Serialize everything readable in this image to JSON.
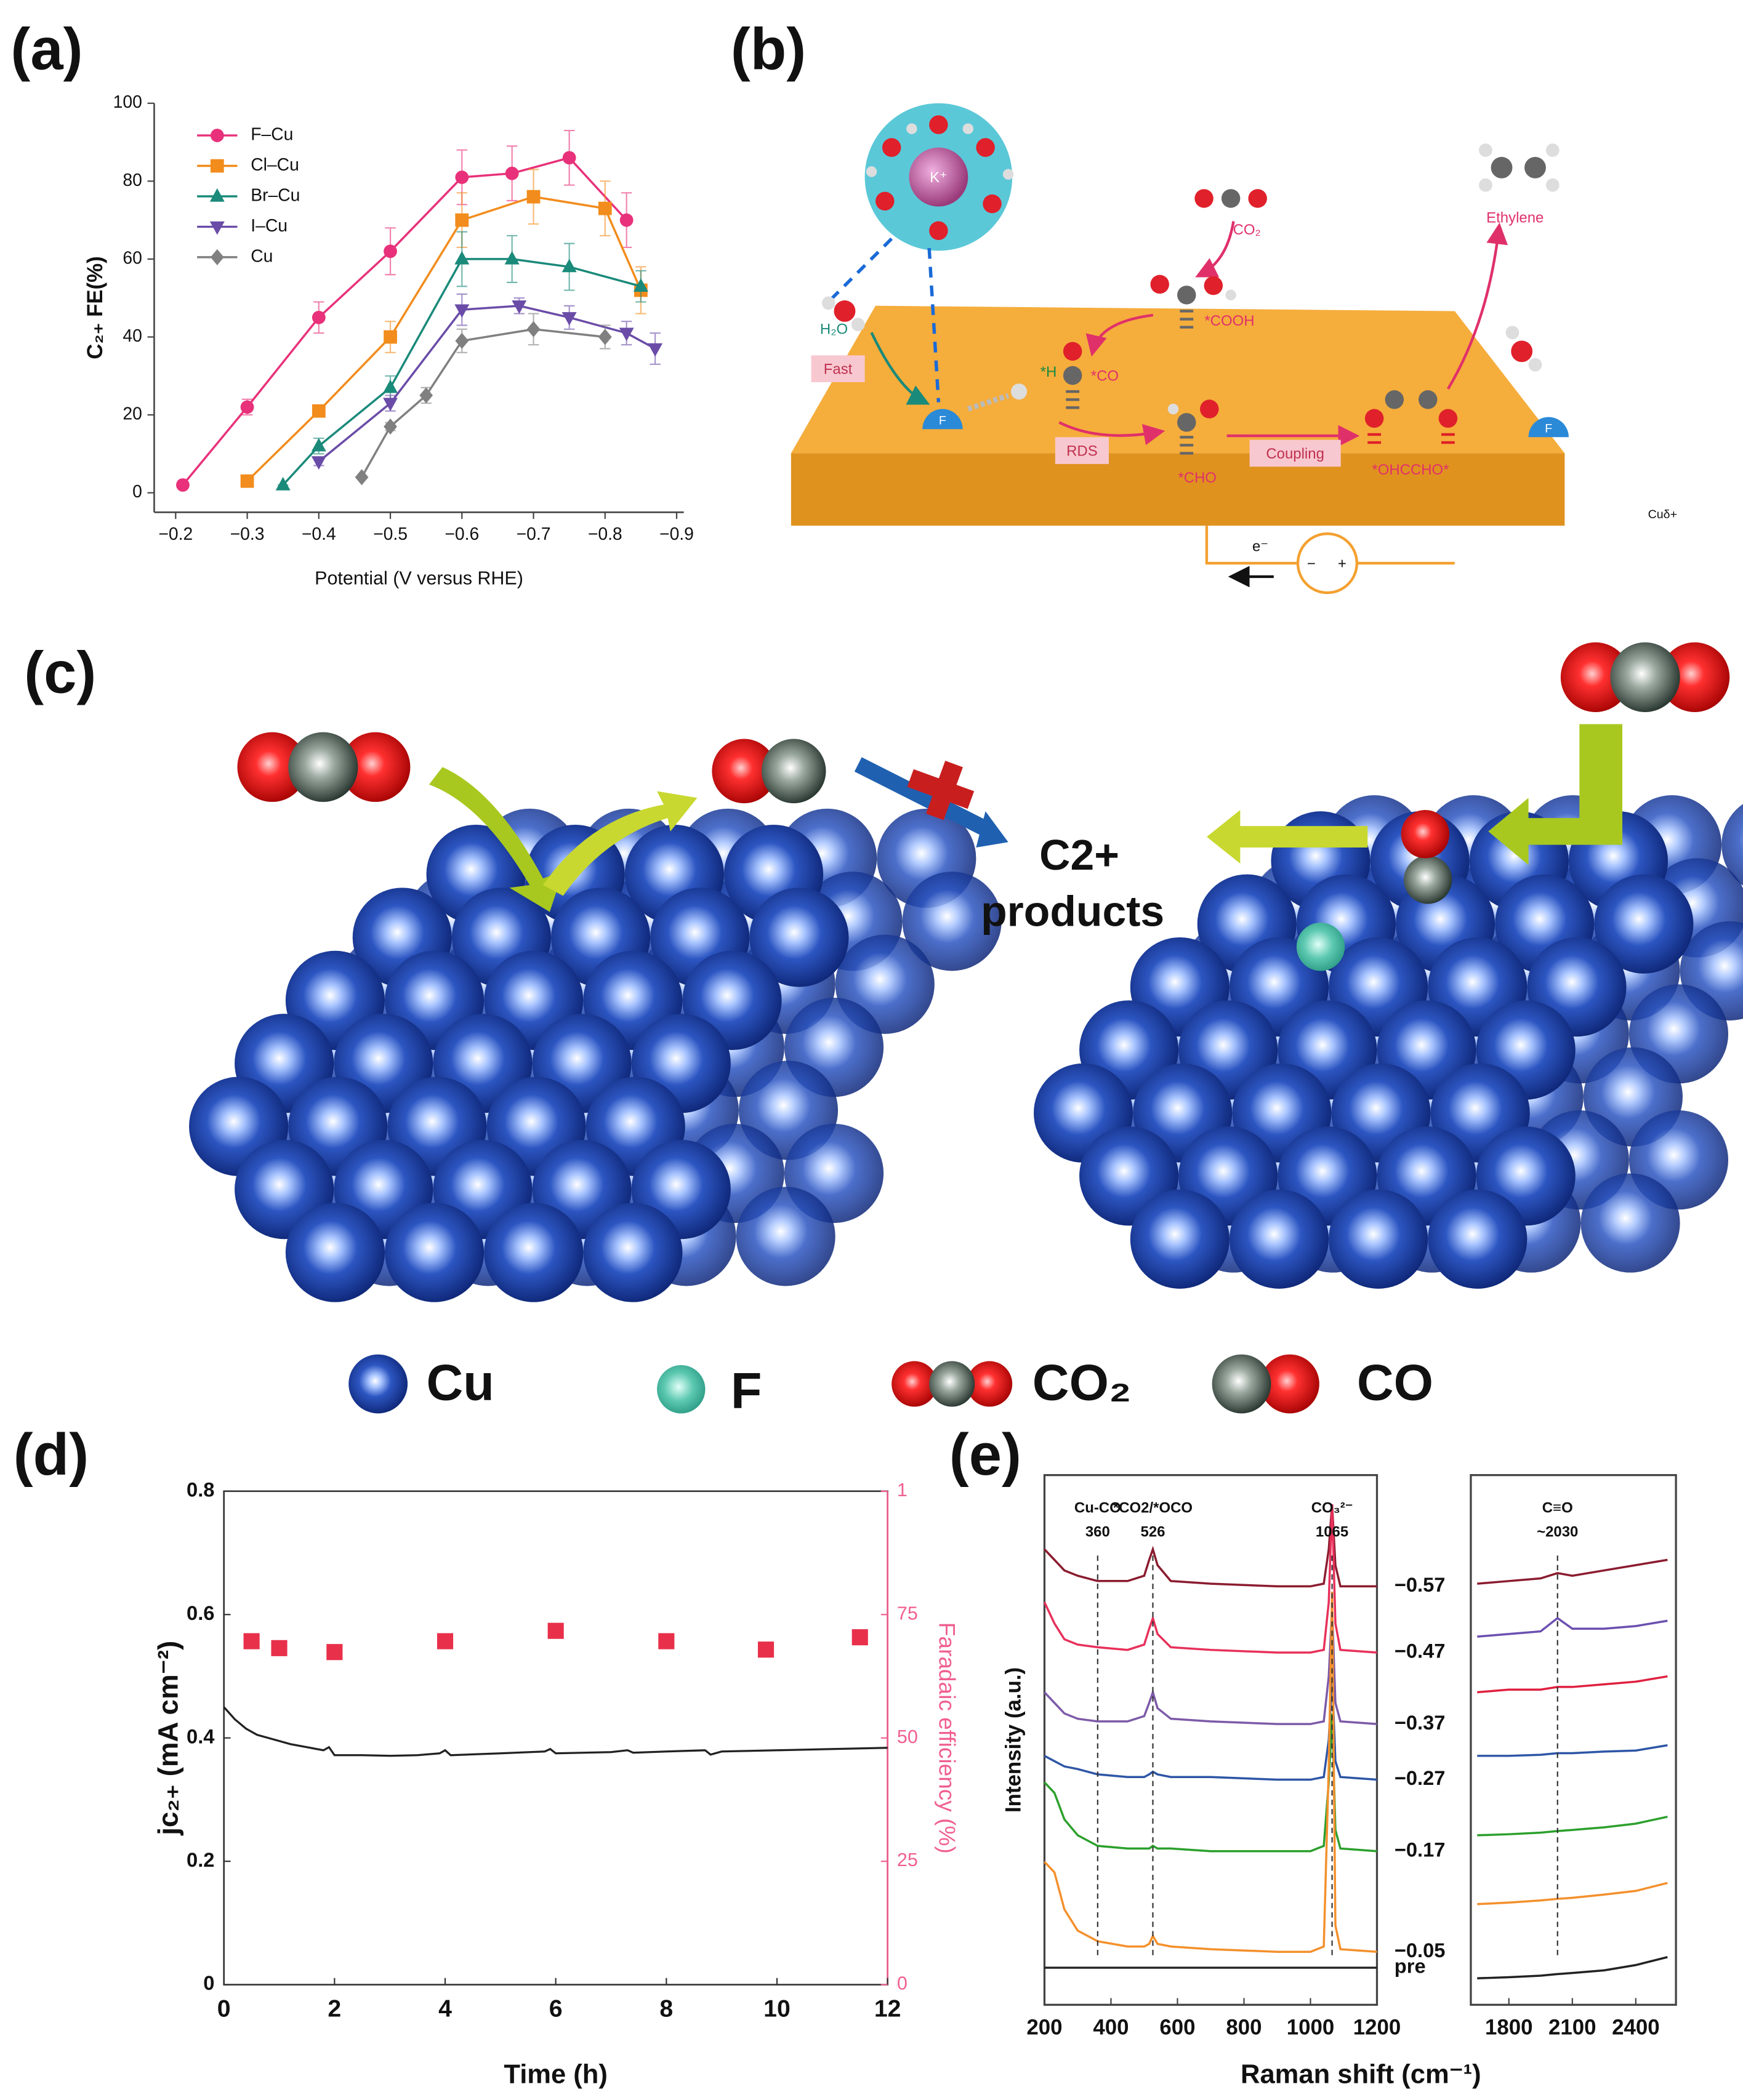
{
  "panel_labels": [
    "(a)",
    "(b)",
    "(c)",
    "(d)",
    "(e)"
  ],
  "chart_data": [
    {
      "type": "line",
      "xlabel": "Potential (V versus RHE)",
      "ylabel": "C₂₊ FE(%)",
      "xlim": [
        -0.17,
        -0.91
      ],
      "ylim": [
        -5,
        100
      ],
      "xticks": [
        {
          "value": -0.2,
          "label": "−0.2"
        },
        {
          "value": -0.3,
          "label": "−0.3"
        },
        {
          "value": -0.4,
          "label": "−0.4"
        },
        {
          "value": -0.5,
          "label": "−0.5"
        },
        {
          "value": -0.6,
          "label": "−0.6"
        },
        {
          "value": -0.7,
          "label": "−0.7"
        },
        {
          "value": -0.8,
          "label": "−0.8"
        },
        {
          "value": -0.9,
          "label": "−0.9"
        }
      ],
      "yticks": [
        0,
        20,
        40,
        60,
        80,
        100
      ],
      "legend": "upper left",
      "series": [
        {
          "name": "F–Cu",
          "color": "#e8317a",
          "marker": "circle",
          "x": [
            -0.21,
            -0.3,
            -0.4,
            -0.5,
            -0.6,
            -0.67,
            -0.75,
            -0.83
          ],
          "values": [
            2,
            22,
            45,
            62,
            81,
            82,
            86,
            70
          ],
          "errors": [
            0,
            2,
            4,
            6,
            7,
            7,
            7,
            7
          ]
        },
        {
          "name": "Cl–Cu",
          "color": "#f28c1c",
          "marker": "square",
          "x": [
            -0.3,
            -0.4,
            -0.5,
            -0.6,
            -0.7,
            -0.8,
            -0.85
          ],
          "values": [
            3,
            21,
            40,
            70,
            76,
            73,
            52
          ],
          "errors": [
            0,
            1,
            4,
            7,
            7,
            7,
            6
          ]
        },
        {
          "name": "Br–Cu",
          "color": "#1a8a7a",
          "marker": "triangle",
          "x": [
            -0.35,
            -0.4,
            -0.5,
            -0.6,
            -0.67,
            -0.75,
            -0.85
          ],
          "values": [
            2,
            12,
            27,
            60,
            60,
            58,
            53
          ],
          "errors": [
            0,
            2,
            3,
            7,
            6,
            6,
            4
          ]
        },
        {
          "name": "I–Cu",
          "color": "#6a4ca8",
          "marker": "triangle-down",
          "x": [
            -0.4,
            -0.5,
            -0.6,
            -0.68,
            -0.75,
            -0.83,
            -0.87
          ],
          "values": [
            8,
            23,
            47,
            48,
            45,
            41,
            37
          ],
          "errors": [
            1,
            2,
            4,
            2,
            3,
            3,
            4
          ]
        },
        {
          "name": "Cu",
          "color": "#808080",
          "marker": "diamond",
          "x": [
            -0.46,
            -0.5,
            -0.55,
            -0.6,
            -0.7,
            -0.8
          ],
          "values": [
            4,
            17,
            25,
            39,
            42,
            40
          ],
          "errors": [
            0,
            1,
            2,
            3,
            4,
            3
          ]
        }
      ]
    },
    {
      "type": "line",
      "xlabel": "Time (h)",
      "ylabel": "jc₂₊ (mA cm⁻²)",
      "y2label": "Faradaic efficiency (%)",
      "xlim": [
        0,
        12
      ],
      "ylim": [
        0,
        0.8
      ],
      "y2lim": [
        0,
        100
      ],
      "xticks": [
        0,
        2,
        4,
        6,
        8,
        10,
        12
      ],
      "yticks": [
        0,
        0.2,
        0.4,
        0.6,
        0.8
      ],
      "y2ticks": [
        0,
        25,
        50,
        75,
        {
          "value": 100,
          "label": "1"
        }
      ],
      "series": [
        {
          "mode": "line",
          "color": "#222222",
          "x": [
            0,
            0.1,
            0.2,
            0.4,
            0.6,
            0.8,
            1,
            1.2,
            1.5,
            1.8,
            1.9,
            2,
            2.5,
            3,
            3.5,
            3.9,
            4,
            4.1,
            5,
            5.8,
            5.9,
            6,
            7,
            7.3,
            7.4,
            8,
            8.7,
            8.8,
            9,
            10,
            11,
            12
          ],
          "values": [
            0.45,
            0.44,
            0.43,
            0.415,
            0.405,
            0.4,
            0.395,
            0.39,
            0.385,
            0.38,
            0.385,
            0.372,
            0.372,
            0.371,
            0.372,
            0.375,
            0.38,
            0.372,
            0.375,
            0.378,
            0.382,
            0.375,
            0.377,
            0.38,
            0.376,
            0.378,
            0.38,
            0.373,
            0.378,
            0.38,
            0.382,
            0.384
          ]
        },
        {
          "mode": "markers",
          "axis": "y2",
          "color": "#e8304a",
          "x": [
            0.5,
            1,
            2,
            4,
            6,
            8,
            9.8,
            11.5
          ],
          "values": [
            69.6,
            68.2,
            67.4,
            69.6,
            71.7,
            69.6,
            67.9,
            70.4
          ]
        }
      ]
    },
    {
      "type": "line",
      "xlabel": "Raman shift (cm⁻¹)",
      "ylabel": "Intensity (a.u.)",
      "ylim": [
        0,
        10
      ],
      "subplots": [
        {
          "xlim": [
            200,
            1200
          ],
          "xticks": [
            200,
            400,
            600,
            800,
            1000,
            1200
          ],
          "x": [
            200,
            230,
            260,
            300,
            360,
            450,
            500,
            515,
            526,
            540,
            580,
            700,
            900,
            1000,
            1040,
            1055,
            1065,
            1075,
            1090,
            1200
          ],
          "annotations": [
            {
              "text": "Cu-CO",
              "x": 360
            },
            {
              "text": "*CO2/*OCO",
              "x": 526
            },
            {
              "text": "CO₃²⁻",
              "x": 1065
            }
          ],
          "series": [
            {
              "name": "−0.57",
              "color": "#8b1c2f",
              "values": [
                8.6,
                8.4,
                8.2,
                8.1,
                8.0,
                8.0,
                8.1,
                8.4,
                8.6,
                8.3,
                8.0,
                7.95,
                7.9,
                7.9,
                7.95,
                8.6,
                9.45,
                8.3,
                7.9,
                7.9
              ]
            },
            {
              "name": "−0.47",
              "color": "#e8305a",
              "values": [
                7.6,
                7.2,
                6.9,
                6.8,
                6.75,
                6.7,
                6.8,
                7.1,
                7.3,
                7.0,
                6.75,
                6.7,
                6.65,
                6.65,
                6.7,
                7.6,
                9.45,
                7.2,
                6.7,
                6.65
              ]
            },
            {
              "name": "−0.37",
              "color": "#7d5aa8",
              "values": [
                5.9,
                5.7,
                5.5,
                5.4,
                5.35,
                5.35,
                5.45,
                5.7,
                5.9,
                5.6,
                5.4,
                5.35,
                5.3,
                5.3,
                5.35,
                6.2,
                7.5,
                5.7,
                5.35,
                5.3
              ]
            },
            {
              "name": "−0.27",
              "color": "#2e56a6",
              "values": [
                4.7,
                4.6,
                4.5,
                4.45,
                4.35,
                4.3,
                4.3,
                4.35,
                4.4,
                4.35,
                4.3,
                4.3,
                4.25,
                4.25,
                4.3,
                5.0,
                6.2,
                4.6,
                4.3,
                4.25
              ]
            },
            {
              "name": "−0.17",
              "color": "#2ca02c",
              "values": [
                4.2,
                4.0,
                3.5,
                3.2,
                3.0,
                2.95,
                2.95,
                2.95,
                3.0,
                2.95,
                2.95,
                2.9,
                2.9,
                2.9,
                3.0,
                4.2,
                5.5,
                3.3,
                2.95,
                2.9
              ]
            },
            {
              "name": "−0.05",
              "color": "#f4902c",
              "values": [
                2.7,
                2.5,
                1.8,
                1.4,
                1.2,
                1.1,
                1.1,
                1.15,
                1.3,
                1.15,
                1.1,
                1.05,
                1.0,
                1.0,
                1.1,
                4.5,
                7.8,
                1.5,
                1.05,
                1.0
              ]
            },
            {
              "name": "pre",
              "color": "#222222",
              "values": [
                0.7,
                0.7,
                0.7,
                0.7,
                0.7,
                0.7,
                0.7,
                0.7,
                0.7,
                0.7,
                0.7,
                0.7,
                0.7,
                0.7,
                0.7,
                0.7,
                0.7,
                0.7,
                0.7,
                0.7
              ]
            }
          ]
        },
        {
          "xlim": [
            1620,
            2590
          ],
          "xticks": [
            1800,
            2100,
            2400
          ],
          "x": [
            1650,
            1800,
            1950,
            2030,
            2100,
            2250,
            2400,
            2550
          ],
          "annotations": [
            {
              "text": "C≡O",
              "x": {
                "value": 2030,
                "label": "~2030"
              }
            }
          ],
          "series": [
            {
              "color": "#8b1c2f",
              "values": [
                7.95,
                8.0,
                8.05,
                8.15,
                8.1,
                8.2,
                8.3,
                8.4
              ]
            },
            {
              "color": "#6b4fb0",
              "values": [
                6.95,
                7.0,
                7.05,
                7.3,
                7.1,
                7.1,
                7.15,
                7.25
              ]
            },
            {
              "color": "#e02040",
              "values": [
                5.9,
                5.95,
                5.95,
                6.0,
                6.0,
                6.05,
                6.1,
                6.2
              ]
            },
            {
              "color": "#2e56a6",
              "values": [
                4.7,
                4.7,
                4.72,
                4.75,
                4.75,
                4.78,
                4.8,
                4.9
              ]
            },
            {
              "color": "#2ca02c",
              "values": [
                3.2,
                3.22,
                3.25,
                3.28,
                3.3,
                3.35,
                3.42,
                3.55
              ]
            },
            {
              "color": "#f4902c",
              "values": [
                1.9,
                1.93,
                1.97,
                2.0,
                2.02,
                2.08,
                2.15,
                2.3
              ]
            },
            {
              "color": "#222222",
              "values": [
                0.5,
                0.52,
                0.55,
                0.58,
                0.6,
                0.65,
                0.75,
                0.9
              ]
            }
          ]
        }
      ]
    }
  ],
  "scheme_b": {
    "k_ion": "K⁺",
    "water": "H₂O",
    "fast": "Fast",
    "h_ads": "*H",
    "f_left": "F",
    "co2": "CO₂",
    "cooh": "*COOH",
    "co": "*CO",
    "rds": "RDS",
    "cho": "*CHO",
    "coupling": "Coupling",
    "ohccho": "*OHCCHO*",
    "ethylene": "Ethylene",
    "f_right": "F",
    "surface": "Cuδ+",
    "electron": "e⁻",
    "minus": "−",
    "plus": "+"
  },
  "scheme_c": {
    "products_line1": "C2+",
    "products_line2": "products",
    "legend": [
      "Cu",
      "F",
      "CO₂",
      "CO"
    ]
  }
}
